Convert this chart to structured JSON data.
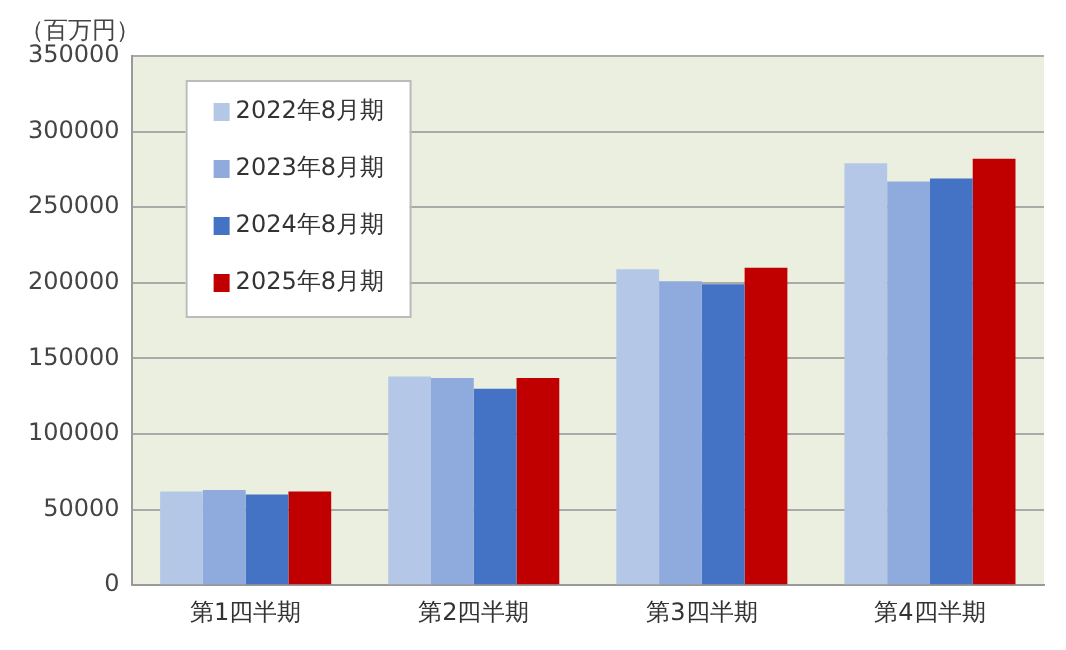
{
  "chart_data": {
    "type": "bar",
    "ylabel": "（百万円）",
    "categories": [
      "第1四半期",
      "第2四半期",
      "第3四半期",
      "第4四半期"
    ],
    "series": [
      {
        "name": "2022年8月期",
        "color": "#b4c7e7",
        "values": [
          62000,
          138000,
          209000,
          279000
        ]
      },
      {
        "name": "2023年8月期",
        "color": "#8faadc",
        "values": [
          63000,
          137000,
          201000,
          267000
        ]
      },
      {
        "name": "2024年8月期",
        "color": "#4472c4",
        "values": [
          60000,
          130000,
          199000,
          269000
        ]
      },
      {
        "name": "2025年8月期",
        "color": "#c00000",
        "values": [
          62000,
          137000,
          210000,
          282000
        ]
      }
    ],
    "ylim": [
      0,
      350000
    ],
    "yticks": [
      0,
      50000,
      100000,
      150000,
      200000,
      250000,
      300000,
      350000
    ],
    "grid": "y",
    "legend": "top left"
  }
}
